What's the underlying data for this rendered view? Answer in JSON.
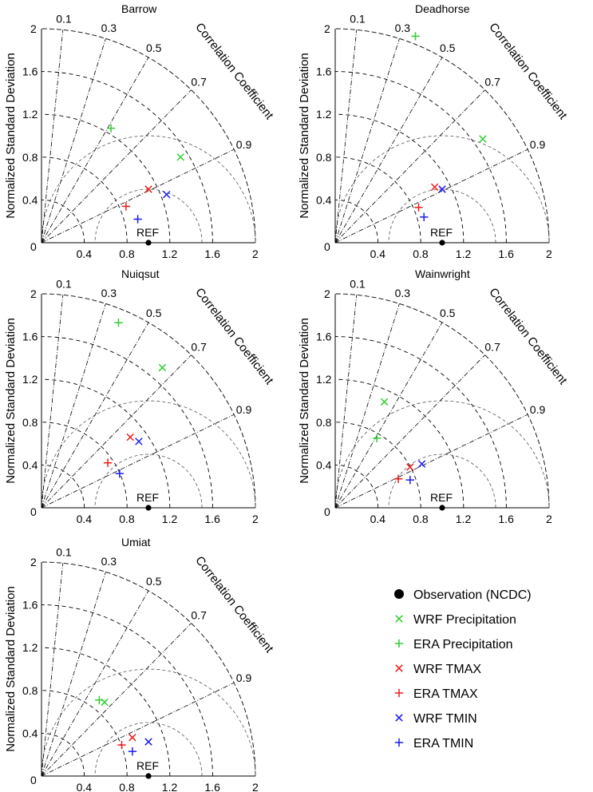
{
  "chart_data": {
    "type": "scatter",
    "chart_kind": "taylor-diagram",
    "y_axis_label": "Normalized Standard Deviation",
    "arc_label": "Correlation Coefficient",
    "std_ticks": [
      "0.4",
      "0.8",
      "1.2",
      "1.6",
      "2"
    ],
    "origin_label": "0",
    "corr_ticks": [
      {
        "value": 0.1,
        "label": "0.1"
      },
      {
        "value": 0.3,
        "label": "0.3"
      },
      {
        "value": 0.5,
        "label": "0.5"
      },
      {
        "value": 0.7,
        "label": "0.7"
      },
      {
        "value": 0.9,
        "label": "0.9"
      }
    ],
    "ref_label": "REF",
    "series_styles": [
      {
        "key": "obs",
        "name": "Observation (NCDC)",
        "marker": "dot",
        "color": "#000000"
      },
      {
        "key": "wrf_prec",
        "name": "WRF Precipitation",
        "marker": "cross",
        "color": "#33cc33"
      },
      {
        "key": "era_prec",
        "name": "ERA Precipitation",
        "marker": "plus",
        "color": "#33cc33"
      },
      {
        "key": "wrf_tmax",
        "name": "WRF TMAX",
        "marker": "cross",
        "color": "#ee1c1c"
      },
      {
        "key": "era_tmax",
        "name": "ERA TMAX",
        "marker": "plus",
        "color": "#ee1c1c"
      },
      {
        "key": "wrf_tmin",
        "name": "WRF TMIN",
        "marker": "cross",
        "color": "#1c1cee"
      },
      {
        "key": "era_tmin",
        "name": "ERA TMIN",
        "marker": "plus",
        "color": "#1c1cee"
      }
    ],
    "panels": [
      {
        "title": "Barrow",
        "points": {
          "wrf_prec": [
            1.3,
            0.8
          ],
          "era_prec": [
            0.65,
            1.07
          ],
          "wrf_tmax": [
            1.0,
            0.5
          ],
          "era_tmax": [
            0.79,
            0.34
          ],
          "wrf_tmin": [
            1.17,
            0.45
          ],
          "era_tmin": [
            0.9,
            0.22
          ]
        }
      },
      {
        "title": "Deadhorse",
        "points": {
          "wrf_prec": [
            1.38,
            0.97
          ],
          "era_prec": [
            0.75,
            1.93
          ],
          "wrf_tmax": [
            0.93,
            0.52
          ],
          "era_tmax": [
            0.78,
            0.33
          ],
          "wrf_tmin": [
            1.0,
            0.5
          ],
          "era_tmin": [
            0.83,
            0.24
          ]
        }
      },
      {
        "title": "Nuiqsut",
        "points": {
          "wrf_prec": [
            1.13,
            1.31
          ],
          "era_prec": [
            0.72,
            1.73
          ],
          "wrf_tmax": [
            0.83,
            0.66
          ],
          "era_tmax": [
            0.62,
            0.42
          ],
          "wrf_tmin": [
            0.91,
            0.62
          ],
          "era_tmin": [
            0.73,
            0.32
          ]
        }
      },
      {
        "title": "Wainwright",
        "points": {
          "wrf_prec": [
            0.46,
            0.99
          ],
          "era_prec": [
            0.39,
            0.65
          ],
          "wrf_tmax": [
            0.7,
            0.38
          ],
          "era_tmax": [
            0.59,
            0.27
          ],
          "wrf_tmin": [
            0.81,
            0.41
          ],
          "era_tmin": [
            0.7,
            0.26
          ]
        }
      },
      {
        "title": "Umiat",
        "points": {
          "wrf_prec": [
            0.59,
            0.69
          ],
          "era_prec": [
            0.54,
            0.71
          ],
          "wrf_tmax": [
            0.85,
            0.36
          ],
          "era_tmax": [
            0.75,
            0.29
          ],
          "wrf_tmin": [
            1.0,
            0.32
          ],
          "era_tmin": [
            0.85,
            0.23
          ]
        }
      }
    ]
  }
}
